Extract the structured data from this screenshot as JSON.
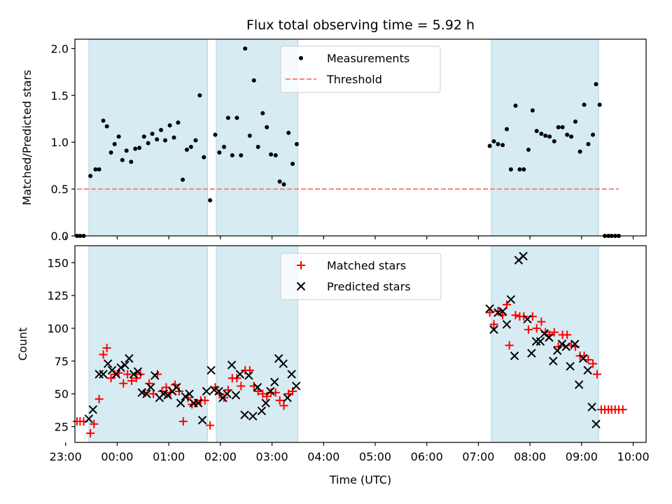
{
  "chart_data": [
    {
      "type": "scatter",
      "title": "Flux total observing time = 5.92 h",
      "xlabel": "",
      "ylabel": "Matched/Predicted stars",
      "xlim": [
        -0.82,
        10.25
      ],
      "ylim": [
        0,
        2.1
      ],
      "yticks": [
        0.0,
        0.5,
        1.0,
        1.5,
        2.0
      ],
      "ytick_labels": [
        "0.0",
        "0.5",
        "1.0",
        "1.5",
        "2.0"
      ],
      "spans": [
        [
          -0.55,
          1.75
        ],
        [
          1.92,
          3.5
        ],
        [
          7.25,
          9.33
        ]
      ],
      "span_color": "#add8e6",
      "legend": {
        "location": "top-center",
        "entries": [
          "Measurements",
          "Threshold"
        ]
      },
      "threshold": {
        "name": "Threshold",
        "x": [
          -0.78,
          9.72
        ],
        "y": 0.5,
        "color": "#ff7f7f"
      },
      "series": [
        {
          "name": "Measurements",
          "color": "#000000",
          "marker": "dot",
          "points": [
            [
              -0.78,
              0.0
            ],
            [
              -0.72,
              0.0
            ],
            [
              -0.65,
              0.0
            ],
            [
              -0.52,
              0.64
            ],
            [
              -0.42,
              0.71
            ],
            [
              -0.35,
              0.71
            ],
            [
              -0.27,
              1.23
            ],
            [
              -0.2,
              1.17
            ],
            [
              -0.12,
              0.89
            ],
            [
              -0.05,
              0.98
            ],
            [
              0.03,
              1.06
            ],
            [
              0.1,
              0.81
            ],
            [
              0.18,
              0.91
            ],
            [
              0.27,
              0.79
            ],
            [
              0.35,
              0.93
            ],
            [
              0.43,
              0.94
            ],
            [
              0.52,
              1.06
            ],
            [
              0.6,
              0.99
            ],
            [
              0.68,
              1.09
            ],
            [
              0.77,
              1.03
            ],
            [
              0.85,
              1.13
            ],
            [
              0.93,
              1.02
            ],
            [
              1.02,
              1.18
            ],
            [
              1.1,
              1.05
            ],
            [
              1.18,
              1.21
            ],
            [
              1.27,
              0.6
            ],
            [
              1.35,
              0.92
            ],
            [
              1.43,
              0.95
            ],
            [
              1.52,
              1.02
            ],
            [
              1.6,
              1.5
            ],
            [
              1.68,
              0.84
            ],
            [
              1.8,
              0.38
            ],
            [
              1.9,
              1.08
            ],
            [
              1.98,
              0.89
            ],
            [
              2.07,
              0.95
            ],
            [
              2.15,
              1.26
            ],
            [
              2.23,
              0.86
            ],
            [
              2.32,
              1.26
            ],
            [
              2.4,
              0.86
            ],
            [
              2.48,
              2.0
            ],
            [
              2.57,
              1.07
            ],
            [
              2.65,
              1.66
            ],
            [
              2.73,
              0.95
            ],
            [
              2.82,
              1.31
            ],
            [
              2.9,
              1.16
            ],
            [
              2.98,
              0.87
            ],
            [
              3.07,
              0.86
            ],
            [
              3.15,
              0.58
            ],
            [
              3.23,
              0.55
            ],
            [
              3.32,
              1.1
            ],
            [
              3.4,
              0.77
            ],
            [
              3.48,
              0.98
            ],
            [
              7.22,
              0.96
            ],
            [
              7.3,
              1.01
            ],
            [
              7.38,
              0.98
            ],
            [
              7.47,
              0.97
            ],
            [
              7.55,
              1.14
            ],
            [
              7.63,
              0.71
            ],
            [
              7.72,
              1.39
            ],
            [
              7.8,
              0.71
            ],
            [
              7.88,
              0.71
            ],
            [
              7.97,
              0.92
            ],
            [
              8.05,
              1.34
            ],
            [
              8.13,
              1.12
            ],
            [
              8.22,
              1.09
            ],
            [
              8.3,
              1.07
            ],
            [
              8.38,
              1.06
            ],
            [
              8.47,
              1.01
            ],
            [
              8.55,
              1.16
            ],
            [
              8.63,
              1.16
            ],
            [
              8.72,
              1.08
            ],
            [
              8.8,
              1.06
            ],
            [
              8.88,
              1.22
            ],
            [
              8.97,
              0.9
            ],
            [
              9.05,
              1.4
            ],
            [
              9.13,
              0.98
            ],
            [
              9.22,
              1.08
            ],
            [
              9.28,
              1.62
            ],
            [
              9.35,
              1.4
            ],
            [
              9.45,
              0.0
            ],
            [
              9.52,
              0.0
            ],
            [
              9.58,
              0.0
            ],
            [
              9.65,
              0.0
            ],
            [
              9.72,
              0.0
            ]
          ]
        }
      ]
    },
    {
      "type": "scatter",
      "title": "",
      "xlabel": "Time (UTC)",
      "ylabel": "Count",
      "xlim": [
        -0.82,
        10.25
      ],
      "ylim": [
        13,
        163
      ],
      "yticks": [
        25,
        50,
        75,
        100,
        125,
        150
      ],
      "ytick_labels": [
        "25",
        "50",
        "75",
        "100",
        "125",
        "150"
      ],
      "xticks": [
        -1,
        0,
        1,
        2,
        3,
        4,
        5,
        6,
        7,
        8,
        9,
        10
      ],
      "xtick_labels": [
        "23:00",
        "00:00",
        "01:00",
        "02:00",
        "03:00",
        "04:00",
        "05:00",
        "06:00",
        "07:00",
        "08:00",
        "09:00",
        "10:00"
      ],
      "spans": [
        [
          -0.55,
          1.75
        ],
        [
          1.92,
          3.5
        ],
        [
          7.25,
          9.33
        ]
      ],
      "span_color": "#add8e6",
      "legend": {
        "location": "top-center",
        "entries": [
          "Matched stars",
          "Predicted stars"
        ]
      },
      "series": [
        {
          "name": "Matched stars",
          "color": "#ff0000",
          "marker": "plus",
          "points": [
            [
              -0.78,
              29
            ],
            [
              -0.72,
              29
            ],
            [
              -0.65,
              29
            ],
            [
              -0.52,
              20
            ],
            [
              -0.45,
              27
            ],
            [
              -0.35,
              46
            ],
            [
              -0.27,
              80
            ],
            [
              -0.2,
              85
            ],
            [
              -0.12,
              62
            ],
            [
              -0.05,
              65
            ],
            [
              0.03,
              66
            ],
            [
              0.12,
              58
            ],
            [
              0.2,
              65
            ],
            [
              0.28,
              60
            ],
            [
              0.37,
              62
            ],
            [
              0.45,
              65
            ],
            [
              0.53,
              51
            ],
            [
              0.62,
              58
            ],
            [
              0.7,
              50
            ],
            [
              0.78,
              65
            ],
            [
              0.87,
              52
            ],
            [
              0.95,
              55
            ],
            [
              1.03,
              51
            ],
            [
              1.12,
              57
            ],
            [
              1.2,
              52
            ],
            [
              1.28,
              29
            ],
            [
              1.37,
              47
            ],
            [
              1.45,
              42
            ],
            [
              1.53,
              43
            ],
            [
              1.62,
              45
            ],
            [
              1.7,
              45
            ],
            [
              1.8,
              26
            ],
            [
              1.9,
              55
            ],
            [
              1.98,
              50
            ],
            [
              2.07,
              47
            ],
            [
              2.15,
              53
            ],
            [
              2.23,
              62
            ],
            [
              2.32,
              62
            ],
            [
              2.4,
              56
            ],
            [
              2.48,
              68
            ],
            [
              2.57,
              68
            ],
            [
              2.65,
              56
            ],
            [
              2.73,
              52
            ],
            [
              2.82,
              50
            ],
            [
              2.9,
              48
            ],
            [
              2.98,
              51
            ],
            [
              3.07,
              51
            ],
            [
              3.15,
              45
            ],
            [
              3.23,
              41
            ],
            [
              3.32,
              50
            ],
            [
              3.4,
              52
            ],
            [
              7.22,
              112
            ],
            [
              7.3,
              103
            ],
            [
              7.38,
              113
            ],
            [
              7.47,
              110
            ],
            [
              7.55,
              118
            ],
            [
              7.6,
              87
            ],
            [
              7.72,
              110
            ],
            [
              7.8,
              109
            ],
            [
              7.88,
              109
            ],
            [
              7.97,
              99
            ],
            [
              8.05,
              109
            ],
            [
              8.13,
              100
            ],
            [
              8.22,
              105
            ],
            [
              8.3,
              97
            ],
            [
              8.38,
              95
            ],
            [
              8.47,
              97
            ],
            [
              8.55,
              86
            ],
            [
              8.63,
              95
            ],
            [
              8.72,
              95
            ],
            [
              8.8,
              87
            ],
            [
              8.88,
              86
            ],
            [
              8.97,
              79
            ],
            [
              9.05,
              79
            ],
            [
              9.13,
              76
            ],
            [
              9.22,
              73
            ],
            [
              9.3,
              65
            ],
            [
              9.38,
              38
            ],
            [
              9.45,
              38
            ],
            [
              9.52,
              38
            ],
            [
              9.58,
              38
            ],
            [
              9.65,
              38
            ],
            [
              9.72,
              38
            ],
            [
              9.8,
              38
            ]
          ]
        },
        {
          "name": "Predicted stars",
          "color": "#000000",
          "marker": "x",
          "points": [
            [
              -0.55,
              31
            ],
            [
              -0.47,
              38
            ],
            [
              -0.35,
              65
            ],
            [
              -0.27,
              65
            ],
            [
              -0.18,
              73
            ],
            [
              -0.1,
              68
            ],
            [
              -0.02,
              65
            ],
            [
              0.07,
              70
            ],
            [
              0.15,
              72
            ],
            [
              0.23,
              77
            ],
            [
              0.32,
              65
            ],
            [
              0.4,
              67
            ],
            [
              0.48,
              51
            ],
            [
              0.57,
              50
            ],
            [
              0.65,
              55
            ],
            [
              0.73,
              64
            ],
            [
              0.82,
              47
            ],
            [
              0.9,
              50
            ],
            [
              0.98,
              49
            ],
            [
              1.07,
              52
            ],
            [
              1.15,
              55
            ],
            [
              1.23,
              43
            ],
            [
              1.32,
              48
            ],
            [
              1.4,
              50
            ],
            [
              1.48,
              43
            ],
            [
              1.57,
              43
            ],
            [
              1.65,
              30
            ],
            [
              1.73,
              52
            ],
            [
              1.82,
              68
            ],
            [
              1.88,
              53
            ],
            [
              1.97,
              52
            ],
            [
              2.05,
              47
            ],
            [
              2.13,
              50
            ],
            [
              2.22,
              72
            ],
            [
              2.3,
              49
            ],
            [
              2.38,
              65
            ],
            [
              2.47,
              34
            ],
            [
              2.55,
              64
            ],
            [
              2.63,
              33
            ],
            [
              2.72,
              55
            ],
            [
              2.8,
              37
            ],
            [
              2.88,
              43
            ],
            [
              2.97,
              52
            ],
            [
              3.05,
              59
            ],
            [
              3.13,
              77
            ],
            [
              3.22,
              73
            ],
            [
              3.3,
              47
            ],
            [
              3.38,
              65
            ],
            [
              3.47,
              56
            ],
            [
              7.22,
              115
            ],
            [
              7.3,
              99
            ],
            [
              7.38,
              112
            ],
            [
              7.47,
              113
            ],
            [
              7.55,
              103
            ],
            [
              7.63,
              122
            ],
            [
              7.7,
              79
            ],
            [
              7.78,
              152
            ],
            [
              7.87,
              155
            ],
            [
              7.95,
              107
            ],
            [
              8.03,
              81
            ],
            [
              8.12,
              90
            ],
            [
              8.2,
              90
            ],
            [
              8.28,
              96
            ],
            [
              8.37,
              93
            ],
            [
              8.45,
              75
            ],
            [
              8.53,
              83
            ],
            [
              8.62,
              88
            ],
            [
              8.7,
              86
            ],
            [
              8.78,
              71
            ],
            [
              8.87,
              88
            ],
            [
              8.95,
              57
            ],
            [
              9.03,
              77
            ],
            [
              9.12,
              68
            ],
            [
              9.2,
              40
            ],
            [
              9.28,
              27
            ]
          ]
        }
      ]
    }
  ]
}
